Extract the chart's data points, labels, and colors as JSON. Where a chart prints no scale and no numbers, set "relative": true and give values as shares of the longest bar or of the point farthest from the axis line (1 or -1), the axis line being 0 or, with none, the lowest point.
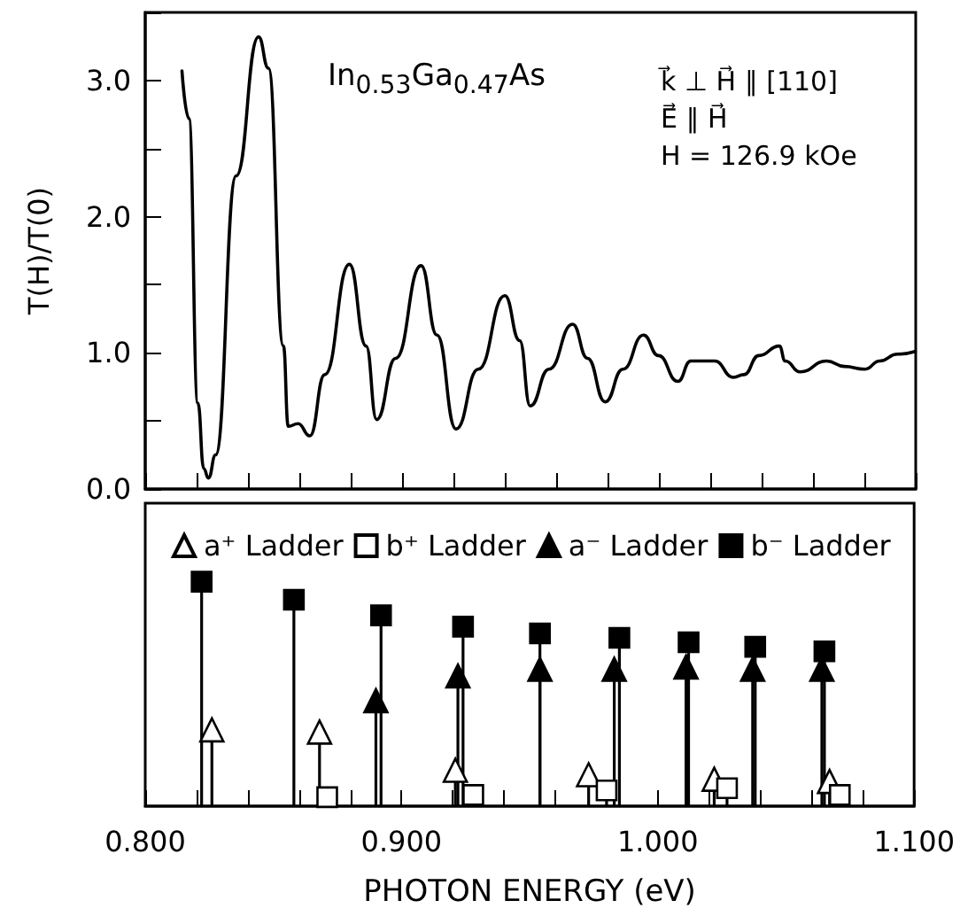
{
  "chart_data": [
    {
      "type": "line",
      "ylabel": "T(H)/T(0)",
      "color": "#000000",
      "annotations": [
        "In$_{0.53}$Ga$_{0.47}$As",
        "k⃗ ⊥ H⃗ ∥ [110]",
        "E⃗ ∥ H⃗",
        "H = 126.9 kOe"
      ],
      "x": [
        0.8143,
        0.817,
        0.8205,
        0.8228,
        0.8246,
        0.8274,
        0.8354,
        0.8441,
        0.848,
        0.8538,
        0.8557,
        0.8595,
        0.8641,
        0.8699,
        0.8795,
        0.886,
        0.8901,
        0.8975,
        0.9074,
        0.9136,
        0.921,
        0.9297,
        0.94,
        0.9458,
        0.9499,
        0.9572,
        0.9664,
        0.9722,
        0.9791,
        0.986,
        0.994,
        0.9998,
        1.0074,
        1.0124,
        1.0217,
        1.029,
        1.0331,
        1.0389,
        1.0469,
        1.0492,
        1.055,
        1.0653,
        1.0722,
        1.0802,
        1.086,
        1.0929,
        1.0998
      ],
      "values": [
        3.07,
        2.72,
        0.63,
        0.15,
        0.08,
        0.25,
        2.3,
        3.32,
        3.09,
        1.05,
        0.46,
        0.48,
        0.39,
        0.84,
        1.65,
        1.05,
        0.51,
        0.96,
        1.64,
        1.13,
        0.44,
        0.88,
        1.42,
        1.09,
        0.61,
        0.88,
        1.21,
        0.96,
        0.64,
        0.88,
        1.13,
        0.98,
        0.79,
        0.94,
        0.94,
        0.82,
        0.84,
        0.98,
        1.05,
        0.94,
        0.86,
        0.94,
        0.9,
        0.88,
        0.94,
        0.99,
        1.01
      ],
      "xlim": [
        0.8,
        1.1
      ],
      "xticks": [
        {
          "value": 0.8,
          "label": null
        },
        {
          "value": 0.82,
          "label": null
        },
        {
          "value": 0.84,
          "label": null
        },
        {
          "value": 0.86,
          "label": null
        },
        {
          "value": 0.88,
          "label": null
        },
        {
          "value": 0.9,
          "label": null
        },
        {
          "value": 0.92,
          "label": null
        },
        {
          "value": 0.94,
          "label": null
        },
        {
          "value": 0.96,
          "label": null
        },
        {
          "value": 0.98,
          "label": null
        },
        {
          "value": 1.0,
          "label": null
        },
        {
          "value": 1.02,
          "label": null
        },
        {
          "value": 1.04,
          "label": null
        },
        {
          "value": 1.06,
          "label": null
        },
        {
          "value": 1.08,
          "label": null
        },
        {
          "value": 1.1,
          "label": null
        }
      ],
      "ylim": [
        0,
        3.5
      ],
      "yticks": [
        {
          "value": 0,
          "label": "0.0"
        },
        {
          "value": 0.5,
          "label": null
        },
        {
          "value": 1,
          "label": "1.0"
        },
        {
          "value": 1.5,
          "label": null
        },
        {
          "value": 2,
          "label": "2.0"
        },
        {
          "value": 2.5,
          "label": null
        },
        {
          "value": 3,
          "label": "3.0"
        },
        {
          "value": 3.5,
          "label": null
        }
      ],
      "tick_labels": "y"
    },
    {
      "type": "lollipop",
      "xlabel": "PHOTON ENERGY (eV)",
      "relative": true,
      "legend": "top",
      "tick_labels": "x",
      "series": [
        {
          "name": "a⁺ Ladder",
          "marker": "triangle",
          "color": "#ffffff",
          "x": [
            0.826,
            0.868,
            0.921,
            0.973,
            1.022,
            1.067
          ],
          "values": [
            0.34,
            0.33,
            0.16,
            0.14,
            0.12,
            0.11
          ]
        },
        {
          "name": "b⁺ Ladder",
          "marker": "square",
          "color": "#ffffff",
          "x": [
            0.871,
            0.928,
            0.98,
            1.027,
            1.071
          ],
          "values": [
            0.04,
            0.05,
            0.07,
            0.08,
            0.05
          ]
        },
        {
          "name": "a⁻ Ladder",
          "marker": "triangle",
          "color": "#000000",
          "x": [
            0.89,
            0.922,
            0.954,
            0.983,
            1.011,
            1.037,
            1.064
          ],
          "values": [
            0.47,
            0.58,
            0.61,
            0.61,
            0.62,
            0.61,
            0.61
          ]
        },
        {
          "name": "b⁻ Ladder",
          "marker": "square",
          "color": "#000000",
          "x": [
            0.822,
            0.858,
            0.892,
            0.924,
            0.954,
            0.985,
            1.012,
            1.038,
            1.065
          ],
          "values": [
            1,
            0.92,
            0.85,
            0.8,
            0.77,
            0.75,
            0.73,
            0.71,
            0.69
          ]
        }
      ],
      "xlim": [
        0.8,
        1.1
      ],
      "xticks": [
        {
          "value": 0.8,
          "label": "0.800"
        },
        {
          "value": 0.82,
          "label": null
        },
        {
          "value": 0.84,
          "label": null
        },
        {
          "value": 0.86,
          "label": null
        },
        {
          "value": 0.88,
          "label": null
        },
        {
          "value": 0.9,
          "label": "0.900"
        },
        {
          "value": 0.92,
          "label": null
        },
        {
          "value": 0.94,
          "label": null
        },
        {
          "value": 0.96,
          "label": null
        },
        {
          "value": 0.98,
          "label": null
        },
        {
          "value": 1.0,
          "label": "1.000"
        },
        {
          "value": 1.02,
          "label": null
        },
        {
          "value": 1.04,
          "label": null
        },
        {
          "value": 1.06,
          "label": null
        },
        {
          "value": 1.08,
          "label": null
        },
        {
          "value": 1.1,
          "label": "1.100"
        }
      ]
    }
  ]
}
